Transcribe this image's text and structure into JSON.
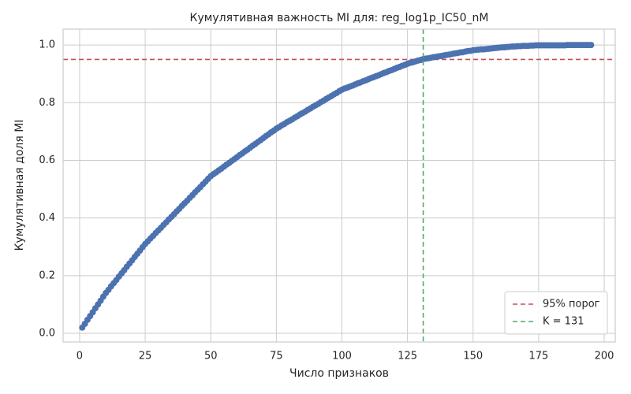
{
  "chart_data": {
    "type": "line",
    "title": "Кумулятивная важность MI для: reg_log1p_IC50_nM",
    "x_label": "Число признаков",
    "y_label": "Кумулятивная доля MI",
    "x": [
      1,
      2,
      3,
      4,
      5,
      6,
      7,
      8,
      9,
      10,
      11,
      12,
      13,
      14,
      15,
      16,
      17,
      18,
      19,
      20,
      21,
      22,
      23,
      24,
      25,
      26,
      27,
      28,
      29,
      30,
      31,
      32,
      33,
      34,
      35,
      36,
      37,
      38,
      39,
      40,
      41,
      42,
      43,
      44,
      45,
      46,
      47,
      48,
      49,
      50,
      51,
      52,
      53,
      54,
      55,
      56,
      57,
      58,
      59,
      60,
      61,
      62,
      63,
      64,
      65,
      66,
      67,
      68,
      69,
      70,
      71,
      72,
      73,
      74,
      75,
      76,
      77,
      78,
      79,
      80,
      81,
      82,
      83,
      84,
      85,
      86,
      87,
      88,
      89,
      90,
      91,
      92,
      93,
      94,
      95,
      96,
      97,
      98,
      99,
      100,
      101,
      102,
      103,
      104,
      105,
      106,
      107,
      108,
      109,
      110,
      111,
      112,
      113,
      114,
      115,
      116,
      117,
      118,
      119,
      120,
      121,
      122,
      123,
      124,
      125,
      126,
      127,
      128,
      129,
      130,
      131,
      132,
      133,
      134,
      135,
      136,
      137,
      138,
      139,
      140,
      141,
      142,
      143,
      144,
      145,
      146,
      147,
      148,
      149,
      150,
      151,
      152,
      153,
      154,
      155,
      156,
      157,
      158,
      159,
      160,
      161,
      162,
      163,
      164,
      165,
      166,
      167,
      168,
      169,
      170,
      171,
      172,
      173,
      174,
      175,
      176,
      177,
      178,
      179,
      180,
      181,
      182,
      183,
      184,
      185,
      186,
      187,
      188,
      189,
      190,
      191,
      192,
      193,
      194,
      195
    ],
    "series": [
      {
        "color": "#4c72b0",
        "values": [
          0.02,
          0.033,
          0.047,
          0.06,
          0.073,
          0.087,
          0.1,
          0.113,
          0.127,
          0.14,
          0.151,
          0.163,
          0.174,
          0.185,
          0.197,
          0.208,
          0.219,
          0.231,
          0.242,
          0.253,
          0.265,
          0.276,
          0.287,
          0.299,
          0.31,
          0.319,
          0.329,
          0.338,
          0.348,
          0.357,
          0.366,
          0.376,
          0.385,
          0.395,
          0.404,
          0.413,
          0.423,
          0.432,
          0.442,
          0.451,
          0.46,
          0.47,
          0.479,
          0.489,
          0.498,
          0.507,
          0.517,
          0.526,
          0.536,
          0.545,
          0.552,
          0.558,
          0.565,
          0.571,
          0.578,
          0.585,
          0.591,
          0.598,
          0.604,
          0.611,
          0.618,
          0.624,
          0.631,
          0.637,
          0.644,
          0.651,
          0.657,
          0.664,
          0.67,
          0.677,
          0.684,
          0.69,
          0.697,
          0.703,
          0.71,
          0.715,
          0.721,
          0.726,
          0.732,
          0.737,
          0.742,
          0.748,
          0.753,
          0.759,
          0.764,
          0.769,
          0.775,
          0.78,
          0.786,
          0.791,
          0.796,
          0.802,
          0.807,
          0.813,
          0.818,
          0.823,
          0.829,
          0.834,
          0.84,
          0.845,
          0.849,
          0.852,
          0.856,
          0.859,
          0.863,
          0.867,
          0.87,
          0.874,
          0.877,
          0.881,
          0.885,
          0.888,
          0.892,
          0.895,
          0.899,
          0.903,
          0.906,
          0.91,
          0.913,
          0.917,
          0.921,
          0.924,
          0.928,
          0.931,
          0.935,
          0.938,
          0.94,
          0.943,
          0.946,
          0.948,
          0.951,
          0.953,
          0.954,
          0.956,
          0.958,
          0.959,
          0.961,
          0.962,
          0.964,
          0.966,
          0.967,
          0.969,
          0.971,
          0.972,
          0.974,
          0.975,
          0.977,
          0.979,
          0.98,
          0.982,
          0.983,
          0.984,
          0.985,
          0.985,
          0.986,
          0.987,
          0.988,
          0.989,
          0.99,
          0.991,
          0.992,
          0.992,
          0.993,
          0.994,
          0.995,
          0.995,
          0.996,
          0.996,
          0.997,
          0.997,
          0.997,
          0.998,
          0.998,
          0.999,
          0.999,
          0.999,
          0.999,
          0.999,
          0.999,
          0.999,
          0.999,
          0.999,
          0.999,
          0.999,
          0.999,
          1.0,
          1.0,
          1.0,
          1.0,
          1.0,
          1.0,
          1.0,
          1.0,
          1.0,
          1.0
        ]
      }
    ],
    "hlines": [
      {
        "value": 0.95,
        "label": "95% порог",
        "color": "#c44e52"
      }
    ],
    "vlines": [
      {
        "value": 131,
        "label": "K = 131",
        "color": "#55a868"
      }
    ],
    "xlim": [
      -6.3,
      204.2
    ],
    "xticks": [
      0,
      25,
      50,
      75,
      100,
      125,
      150,
      175,
      200
    ],
    "ylim": [
      -0.03,
      1.055
    ],
    "yticks": [
      {
        "value": 0,
        "label": "0.0"
      },
      {
        "value": 0.2,
        "label": "0.2"
      },
      {
        "value": 0.4,
        "label": "0.4"
      },
      {
        "value": 0.6,
        "label": "0.6"
      },
      {
        "value": 0.8,
        "label": "0.8"
      },
      {
        "value": 1,
        "label": "1.0"
      }
    ],
    "grid": true,
    "legend": "lower right"
  }
}
